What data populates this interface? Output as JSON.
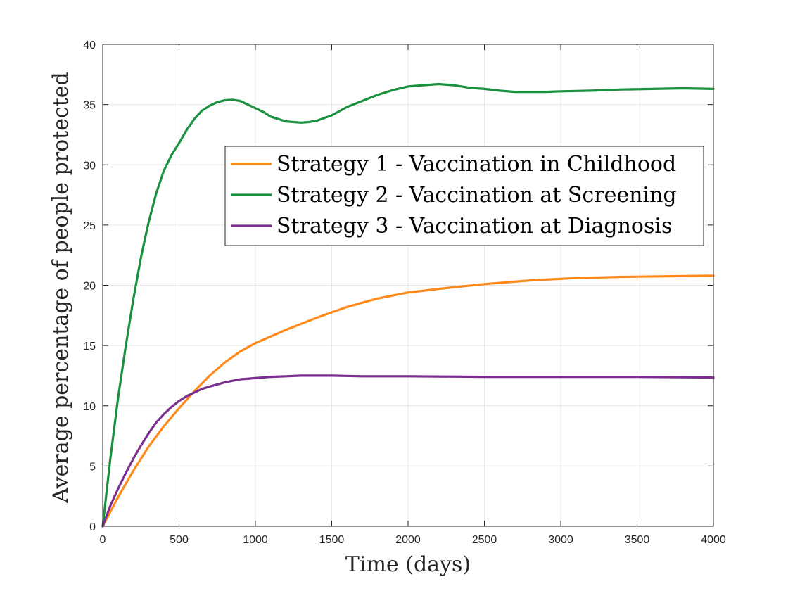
{
  "chart_data": {
    "type": "line",
    "title": "",
    "xlabel": "Time (days)",
    "ylabel": "Average percentage of people protected",
    "xlim": [
      0,
      4000
    ],
    "ylim": [
      0,
      40
    ],
    "xticks": [
      0,
      500,
      1000,
      1500,
      2000,
      2500,
      3000,
      3500,
      4000
    ],
    "yticks": [
      0,
      5,
      10,
      15,
      20,
      25,
      30,
      35,
      40
    ],
    "grid": true,
    "legend_position": "center-right",
    "series": [
      {
        "name": "Strategy 1 - Vaccination in Childhood",
        "color": "#ff8a1c",
        "x": [
          0,
          100,
          200,
          300,
          400,
          500,
          600,
          700,
          800,
          900,
          1000,
          1200,
          1400,
          1600,
          1800,
          2000,
          2200,
          2500,
          2800,
          3100,
          3400,
          3700,
          4000
        ],
        "y": [
          0,
          2.4,
          4.6,
          6.6,
          8.3,
          9.8,
          11.2,
          12.5,
          13.6,
          14.5,
          15.2,
          16.3,
          17.3,
          18.2,
          18.9,
          19.4,
          19.7,
          20.1,
          20.4,
          20.6,
          20.7,
          20.75,
          20.8
        ]
      },
      {
        "name": "Strategy 2 - Vaccination at Screening",
        "color": "#1b9140",
        "x": [
          0,
          50,
          100,
          150,
          200,
          250,
          300,
          350,
          400,
          450,
          500,
          550,
          600,
          650,
          700,
          750,
          800,
          850,
          900,
          950,
          1000,
          1050,
          1100,
          1150,
          1200,
          1250,
          1300,
          1350,
          1400,
          1500,
          1600,
          1700,
          1800,
          1900,
          2000,
          2100,
          2200,
          2300,
          2400,
          2500,
          2600,
          2700,
          2800,
          2900,
          3000,
          3200,
          3400,
          3600,
          3800,
          4000
        ],
        "y": [
          0,
          5.6,
          10.6,
          14.9,
          18.8,
          22.3,
          25.2,
          27.6,
          29.5,
          30.8,
          31.8,
          32.9,
          33.8,
          34.5,
          34.9,
          35.2,
          35.35,
          35.4,
          35.3,
          35.0,
          34.7,
          34.4,
          34.0,
          33.8,
          33.6,
          33.55,
          33.5,
          33.55,
          33.65,
          34.1,
          34.8,
          35.3,
          35.8,
          36.2,
          36.5,
          36.6,
          36.7,
          36.6,
          36.4,
          36.3,
          36.15,
          36.05,
          36.05,
          36.05,
          36.1,
          36.15,
          36.25,
          36.3,
          36.35,
          36.3
        ]
      },
      {
        "name": "Strategy 3 - Vaccination at Diagnosis",
        "color": "#7a2e8f",
        "x": [
          0,
          50,
          100,
          150,
          200,
          250,
          300,
          350,
          400,
          450,
          500,
          550,
          600,
          650,
          700,
          800,
          900,
          1000,
          1100,
          1200,
          1300,
          1400,
          1500,
          1700,
          2000,
          2500,
          3000,
          3500,
          4000
        ],
        "y": [
          0,
          1.7,
          3.1,
          4.4,
          5.6,
          6.7,
          7.7,
          8.6,
          9.3,
          9.9,
          10.4,
          10.8,
          11.1,
          11.4,
          11.6,
          11.95,
          12.2,
          12.3,
          12.4,
          12.45,
          12.5,
          12.5,
          12.5,
          12.45,
          12.45,
          12.4,
          12.4,
          12.4,
          12.35
        ]
      }
    ]
  }
}
